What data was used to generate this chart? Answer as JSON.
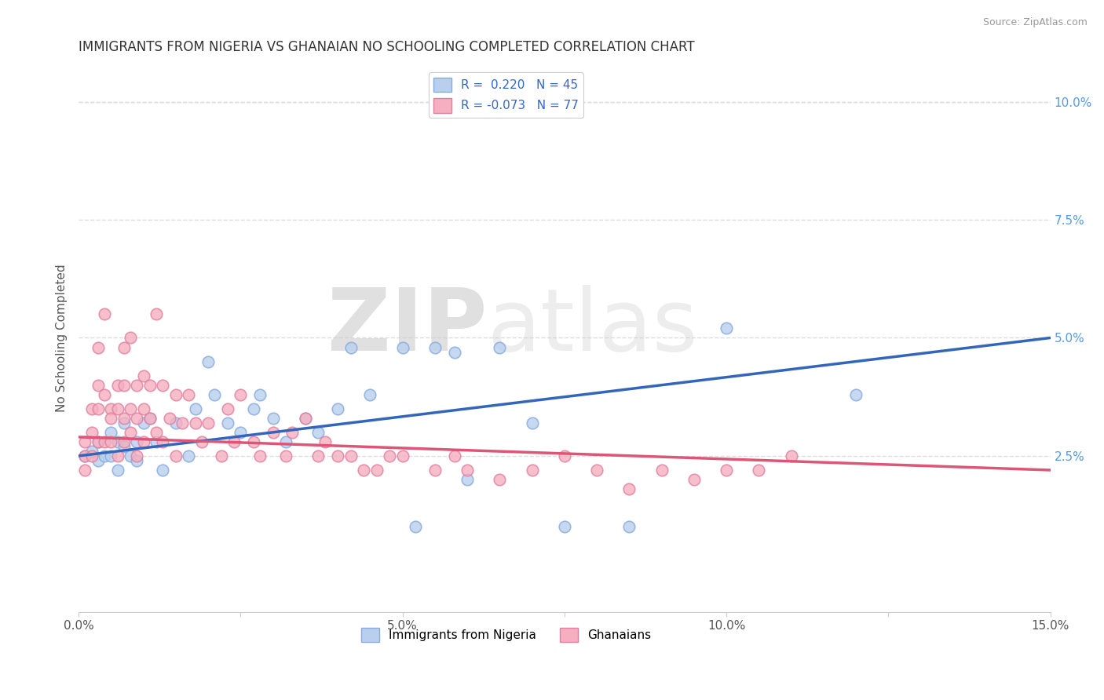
{
  "title": "IMMIGRANTS FROM NIGERIA VS GHANAIAN NO SCHOOLING COMPLETED CORRELATION CHART",
  "source": "Source: ZipAtlas.com",
  "ylabel": "No Schooling Completed",
  "xlim": [
    0.0,
    0.15
  ],
  "ylim": [
    -0.008,
    0.108
  ],
  "xticks": [
    0.0,
    0.025,
    0.05,
    0.075,
    0.1,
    0.125,
    0.15
  ],
  "xticklabels": [
    "0.0%",
    "",
    "5.0%",
    "",
    "10.0%",
    "",
    "15.0%"
  ],
  "yticks_right": [
    0.025,
    0.05,
    0.075,
    0.1
  ],
  "ytick_right_labels": [
    "2.5%",
    "5.0%",
    "7.5%",
    "10.0%"
  ],
  "grid_color": "#dddddd",
  "bg_color": "#ffffff",
  "nigeria_color": "#b8d0ee",
  "nigeria_edge": "#88aadd",
  "ghana_color": "#f5afc0",
  "ghana_edge": "#e080a0",
  "nigeria_R": 0.22,
  "nigeria_N": 45,
  "ghana_R": -0.073,
  "ghana_N": 77,
  "nigeria_line_color": "#3366bb",
  "ghana_line_color": "#dd5577",
  "watermark_zip": "ZIP",
  "watermark_atlas": "atlas",
  "nigeria_x": [
    0.001,
    0.002,
    0.003,
    0.003,
    0.004,
    0.005,
    0.005,
    0.006,
    0.006,
    0.007,
    0.007,
    0.008,
    0.009,
    0.009,
    0.01,
    0.011,
    0.012,
    0.013,
    0.015,
    0.017,
    0.018,
    0.02,
    0.021,
    0.023,
    0.025,
    0.027,
    0.028,
    0.03,
    0.032,
    0.035,
    0.037,
    0.04,
    0.042,
    0.045,
    0.05,
    0.052,
    0.055,
    0.058,
    0.06,
    0.065,
    0.07,
    0.075,
    0.085,
    0.1,
    0.12
  ],
  "nigeria_y": [
    0.025,
    0.026,
    0.028,
    0.024,
    0.025,
    0.03,
    0.025,
    0.028,
    0.022,
    0.032,
    0.027,
    0.025,
    0.028,
    0.024,
    0.032,
    0.033,
    0.028,
    0.022,
    0.032,
    0.025,
    0.035,
    0.045,
    0.038,
    0.032,
    0.03,
    0.035,
    0.038,
    0.033,
    0.028,
    0.033,
    0.03,
    0.035,
    0.048,
    0.038,
    0.048,
    0.01,
    0.048,
    0.047,
    0.02,
    0.048,
    0.032,
    0.01,
    0.01,
    0.052,
    0.038
  ],
  "ghana_x": [
    0.001,
    0.001,
    0.001,
    0.002,
    0.002,
    0.002,
    0.003,
    0.003,
    0.003,
    0.003,
    0.004,
    0.004,
    0.004,
    0.005,
    0.005,
    0.005,
    0.006,
    0.006,
    0.006,
    0.007,
    0.007,
    0.007,
    0.007,
    0.008,
    0.008,
    0.008,
    0.009,
    0.009,
    0.009,
    0.01,
    0.01,
    0.01,
    0.011,
    0.011,
    0.012,
    0.012,
    0.013,
    0.013,
    0.014,
    0.015,
    0.015,
    0.016,
    0.017,
    0.018,
    0.019,
    0.02,
    0.022,
    0.023,
    0.024,
    0.025,
    0.027,
    0.028,
    0.03,
    0.032,
    0.033,
    0.035,
    0.037,
    0.038,
    0.04,
    0.042,
    0.044,
    0.046,
    0.048,
    0.05,
    0.055,
    0.058,
    0.06,
    0.065,
    0.07,
    0.075,
    0.08,
    0.085,
    0.09,
    0.095,
    0.1,
    0.105,
    0.11
  ],
  "ghana_y": [
    0.028,
    0.025,
    0.022,
    0.035,
    0.03,
    0.025,
    0.048,
    0.04,
    0.035,
    0.028,
    0.055,
    0.038,
    0.028,
    0.035,
    0.033,
    0.028,
    0.04,
    0.035,
    0.025,
    0.048,
    0.04,
    0.033,
    0.028,
    0.05,
    0.035,
    0.03,
    0.04,
    0.033,
    0.025,
    0.042,
    0.035,
    0.028,
    0.04,
    0.033,
    0.055,
    0.03,
    0.04,
    0.028,
    0.033,
    0.038,
    0.025,
    0.032,
    0.038,
    0.032,
    0.028,
    0.032,
    0.025,
    0.035,
    0.028,
    0.038,
    0.028,
    0.025,
    0.03,
    0.025,
    0.03,
    0.033,
    0.025,
    0.028,
    0.025,
    0.025,
    0.022,
    0.022,
    0.025,
    0.025,
    0.022,
    0.025,
    0.022,
    0.02,
    0.022,
    0.025,
    0.022,
    0.018,
    0.022,
    0.02,
    0.022,
    0.022,
    0.025
  ]
}
